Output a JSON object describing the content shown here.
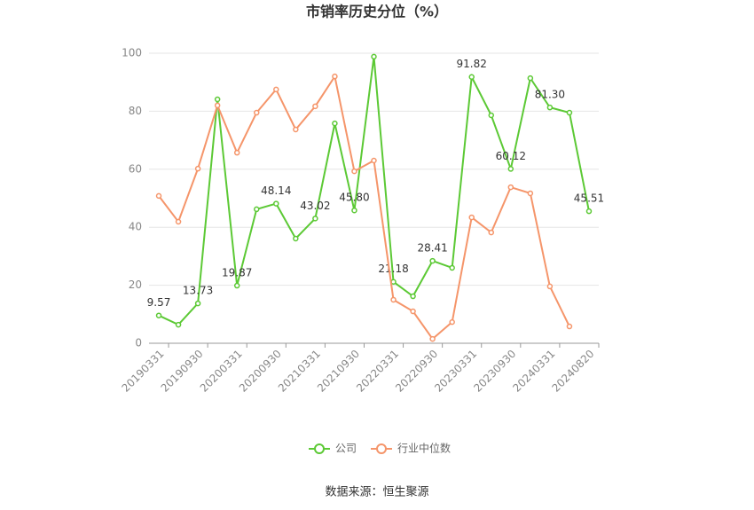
{
  "chart_data": {
    "type": "line",
    "title": "市销率历史分位（%）",
    "categories": [
      "20190331",
      null,
      "20190930",
      null,
      "20200331",
      null,
      "20200930",
      null,
      "20210331",
      null,
      "20210930",
      null,
      "20220331",
      null,
      "20220930",
      null,
      "20230331",
      null,
      "20230930",
      null,
      "20240331",
      null,
      "20240820"
    ],
    "series": [
      {
        "name": "公司",
        "color": "#5cc935",
        "values": [
          9.57,
          6.4,
          13.73,
          84.1,
          19.87,
          46.2,
          48.14,
          36.1,
          43.02,
          75.8,
          45.8,
          98.8,
          21.18,
          16.2,
          28.41,
          26.0,
          91.82,
          78.6,
          60.12,
          91.4,
          81.3,
          79.5,
          45.51
        ],
        "value_labels": [
          "9.57",
          null,
          "13.73",
          null,
          "19.87",
          null,
          "48.14",
          null,
          "43.02",
          null,
          "45.80",
          null,
          "21.18",
          null,
          "28.41",
          null,
          "91.82",
          null,
          "60.12",
          null,
          "81.30",
          null,
          "45.51"
        ]
      },
      {
        "name": "行业中位数",
        "color": "#f5956a",
        "values": [
          50.8,
          41.9,
          60.2,
          82.0,
          65.7,
          79.5,
          87.5,
          73.7,
          81.7,
          92.0,
          59.3,
          63.0,
          15.0,
          11.0,
          1.5,
          7.3,
          43.4,
          38.2,
          53.8,
          51.7,
          19.6,
          5.8,
          null
        ]
      }
    ],
    "ylim": [
      0,
      100
    ],
    "yticks": [
      0,
      20,
      40,
      60,
      80,
      100
    ],
    "grid": true,
    "source": "数据来源：恒生聚源"
  }
}
